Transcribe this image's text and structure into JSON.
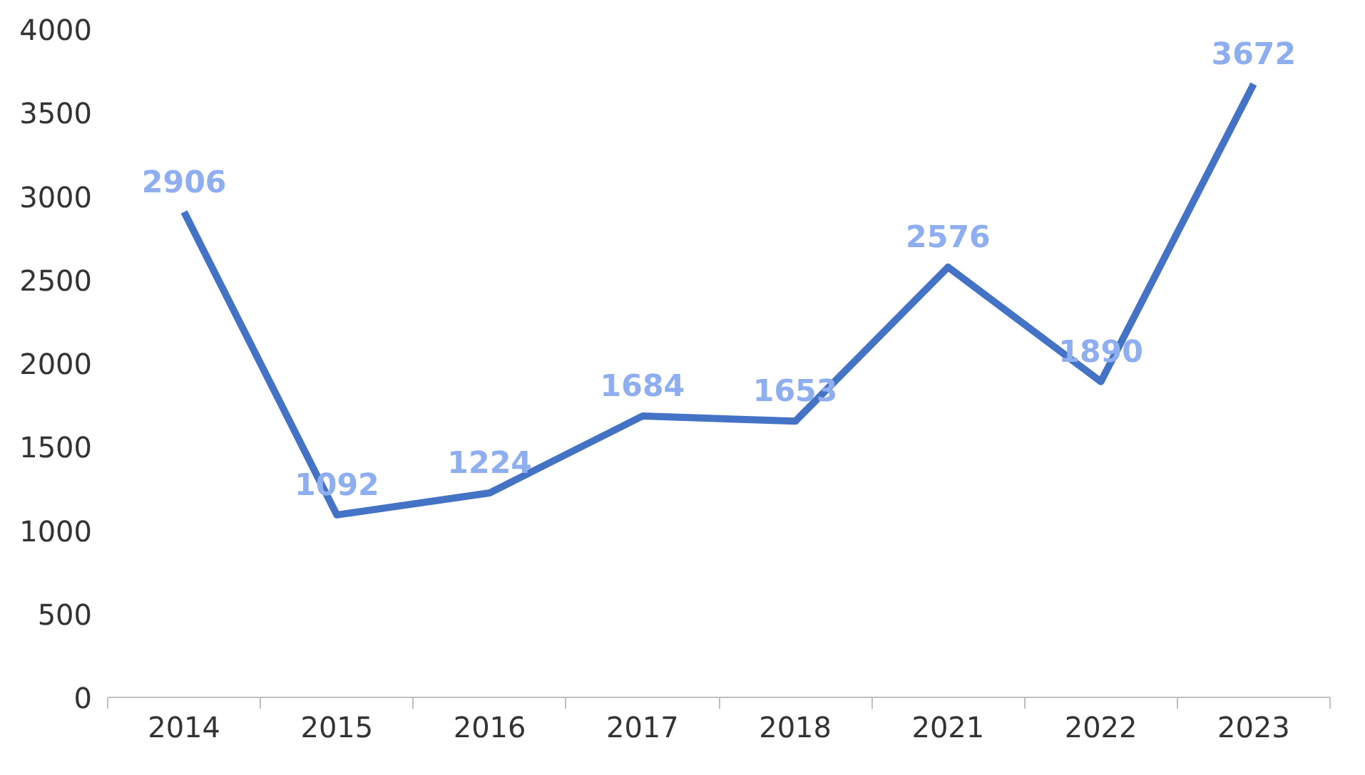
{
  "chart_data": {
    "type": "line",
    "categories": [
      "2014",
      "2015",
      "2016",
      "2017",
      "2018",
      "2021",
      "2022",
      "2023"
    ],
    "series": [
      {
        "color": "#4472c4",
        "values": [
          2906,
          1092,
          1224,
          1684,
          1653,
          2576,
          1890,
          3672
        ]
      }
    ],
    "ylim": [
      0,
      4000
    ],
    "yticks": [
      0,
      500,
      1000,
      1500,
      2000,
      2500,
      3000,
      3500,
      4000
    ],
    "data_labels": true,
    "grid": false,
    "marker": "none",
    "line_style": "solid"
  }
}
